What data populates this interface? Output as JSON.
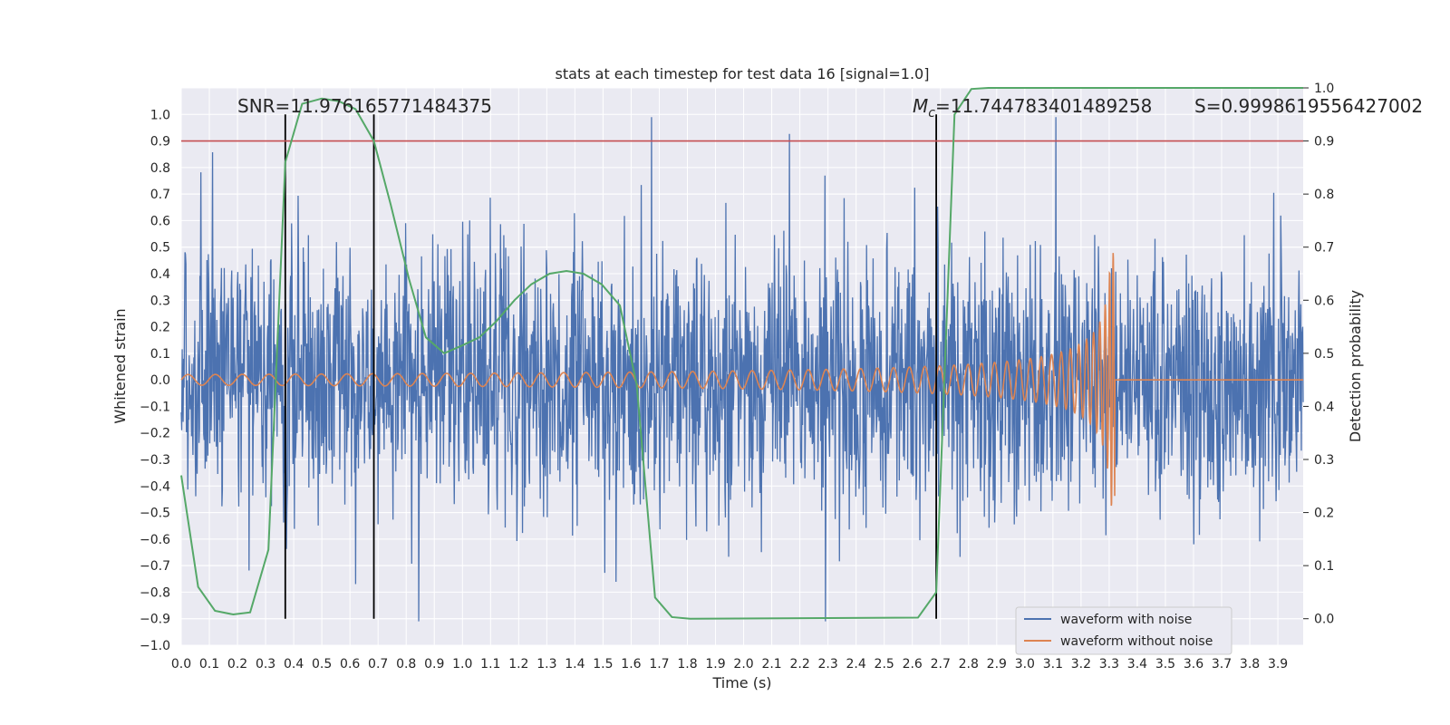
{
  "chart_data": {
    "type": "line",
    "title": "stats at each timestep for test data 16 [signal=1.0]",
    "xlabel": "Time (s)",
    "ylabel_left": "Whitened strain",
    "ylabel_right": "Detection probability",
    "xlim": [
      0.0,
      3.99
    ],
    "ylim_left": [
      -1.0,
      1.1
    ],
    "ylim_right": [
      -0.05,
      1.0
    ],
    "x_ticks": [
      "0.0",
      "0.1",
      "0.2",
      "0.3",
      "0.4",
      "0.5",
      "0.6",
      "0.7",
      "0.8",
      "0.9",
      "1.0",
      "1.1",
      "1.2",
      "1.3",
      "1.4",
      "1.5",
      "1.6",
      "1.7",
      "1.8",
      "1.9",
      "2.0",
      "2.1",
      "2.2",
      "2.3",
      "2.4",
      "2.5",
      "2.6",
      "2.7",
      "2.8",
      "2.9",
      "3.0",
      "3.1",
      "3.2",
      "3.3",
      "3.4",
      "3.5",
      "3.6",
      "3.7",
      "3.8",
      "3.9"
    ],
    "y_left_ticks": [
      "1.0",
      "0.9",
      "0.8",
      "0.7",
      "0.6",
      "0.5",
      "0.4",
      "0.3",
      "0.2",
      "0.1",
      "0.0",
      "−0.1",
      "−0.2",
      "−0.3",
      "−0.4",
      "−0.5",
      "−0.6",
      "−0.7",
      "−0.8",
      "−0.9",
      "−1.0"
    ],
    "y_right_ticks": [
      "1.0",
      "0.9",
      "0.8",
      "0.7",
      "0.6",
      "0.5",
      "0.4",
      "0.3",
      "0.2",
      "0.1",
      "0.0"
    ],
    "annotations": {
      "snr": "SNR=11.976165771484375",
      "mc_symbol": "M",
      "mc_sub": "c",
      "mc_value": "=11.744783401489258",
      "s": "S=0.9998619556427002"
    },
    "threshold_right": 0.9,
    "vertical_lines_x": [
      0.37,
      0.685,
      2.685
    ],
    "vertical_lines_range": [
      -0.9,
      1.0
    ],
    "legend": [
      "waveform with noise",
      "waveform without noise"
    ],
    "colors": {
      "noise": "#4c72b0",
      "clean": "#dd8452",
      "prob": "#55a868",
      "threshold": "#c44e52",
      "vline": "#000000",
      "bg": "#eaeaf2",
      "grid": "#ffffff"
    },
    "series": [
      {
        "name": "detection probability",
        "axis": "right",
        "x": [
          0.0,
          0.06,
          0.12,
          0.185,
          0.245,
          0.31,
          0.37,
          0.43,
          0.5,
          0.56,
          0.62,
          0.685,
          0.745,
          0.81,
          0.87,
          0.935,
          1.0,
          1.06,
          1.12,
          1.185,
          1.245,
          1.31,
          1.37,
          1.43,
          1.495,
          1.56,
          1.62,
          1.685,
          1.745,
          1.81,
          2.62,
          2.685,
          2.75,
          2.81,
          2.87,
          3.99
        ],
        "y": [
          0.27,
          0.06,
          0.015,
          0.008,
          0.012,
          0.13,
          0.86,
          0.97,
          0.98,
          0.975,
          0.96,
          0.9,
          0.78,
          0.64,
          0.53,
          0.5,
          0.515,
          0.53,
          0.56,
          0.6,
          0.63,
          0.65,
          0.655,
          0.65,
          0.63,
          0.59,
          0.44,
          0.04,
          0.003,
          0.0,
          0.002,
          0.05,
          0.95,
          0.998,
          1.0,
          1.0
        ]
      },
      {
        "name": "waveform without noise",
        "axis": "left",
        "model": "chirp",
        "t_merger": 3.32,
        "start_amplitude": 0.02,
        "peak_amplitude": 0.48,
        "start_frequency_hz": 11,
        "end_frequency_hz": 80
      },
      {
        "name": "waveform with noise",
        "axis": "left",
        "model": "noise",
        "typical_amplitude": 0.45,
        "max": 0.99,
        "min": -0.91
      }
    ]
  }
}
